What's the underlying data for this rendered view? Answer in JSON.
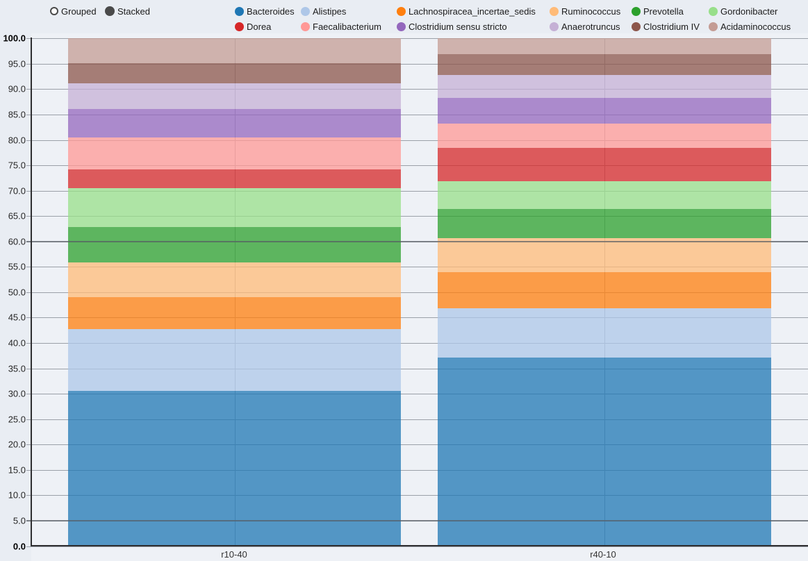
{
  "controls": {
    "grouped_label": "Grouped",
    "stacked_label": "Stacked",
    "selected_mode": "Stacked"
  },
  "chart_data": {
    "type": "bar",
    "stacked": true,
    "orientation": "vertical",
    "categories": [
      "r10-40",
      "r40-10"
    ],
    "series": [
      {
        "name": "Bacteroides",
        "color": "#1f77b4",
        "values": [
          30.6,
          37.1
        ]
      },
      {
        "name": "Alistipes",
        "color": "#aec7e8",
        "values": [
          12.2,
          9.7
        ]
      },
      {
        "name": "Lachnospiracea_incertae_sedis",
        "color": "#ff7f0e",
        "values": [
          6.2,
          7.2
        ]
      },
      {
        "name": "Ruminococcus",
        "color": "#ffbb78",
        "values": [
          6.9,
          6.6
        ]
      },
      {
        "name": "Prevotella",
        "color": "#2ca02c",
        "values": [
          6.9,
          5.8
        ]
      },
      {
        "name": "Gordonibacter",
        "color": "#98df8a",
        "values": [
          7.7,
          5.4
        ]
      },
      {
        "name": "Dorea",
        "color": "#d62728",
        "values": [
          3.7,
          6.6
        ]
      },
      {
        "name": "Faecalibacterium",
        "color": "#ff9896",
        "values": [
          6.3,
          4.8
        ]
      },
      {
        "name": "Clostridium sensu stricto",
        "color": "#9467bd",
        "values": [
          5.6,
          5.1
        ]
      },
      {
        "name": "Anaerotruncus",
        "color": "#c5b0d5",
        "values": [
          5.0,
          4.5
        ]
      },
      {
        "name": "Clostridium IV",
        "color": "#8c564b",
        "values": [
          4.0,
          4.1
        ]
      },
      {
        "name": "Acidaminococcus",
        "color": "#c49c94",
        "values": [
          4.9,
          3.1
        ]
      }
    ],
    "ylim": [
      0,
      100
    ],
    "ytick_step": 5,
    "ytick_labels": [
      "0.0",
      "5.0",
      "10.0",
      "15.0",
      "20.0",
      "25.0",
      "30.0",
      "35.0",
      "40.0",
      "45.0",
      "50.0",
      "55.0",
      "60.0",
      "65.0",
      "70.0",
      "75.0",
      "80.0",
      "85.0",
      "90.0",
      "95.0",
      "100.0"
    ],
    "emphasized_gridlines": [
      5,
      60
    ],
    "grid": true,
    "legend_position": "top",
    "bar_opacity": 0.75
  }
}
